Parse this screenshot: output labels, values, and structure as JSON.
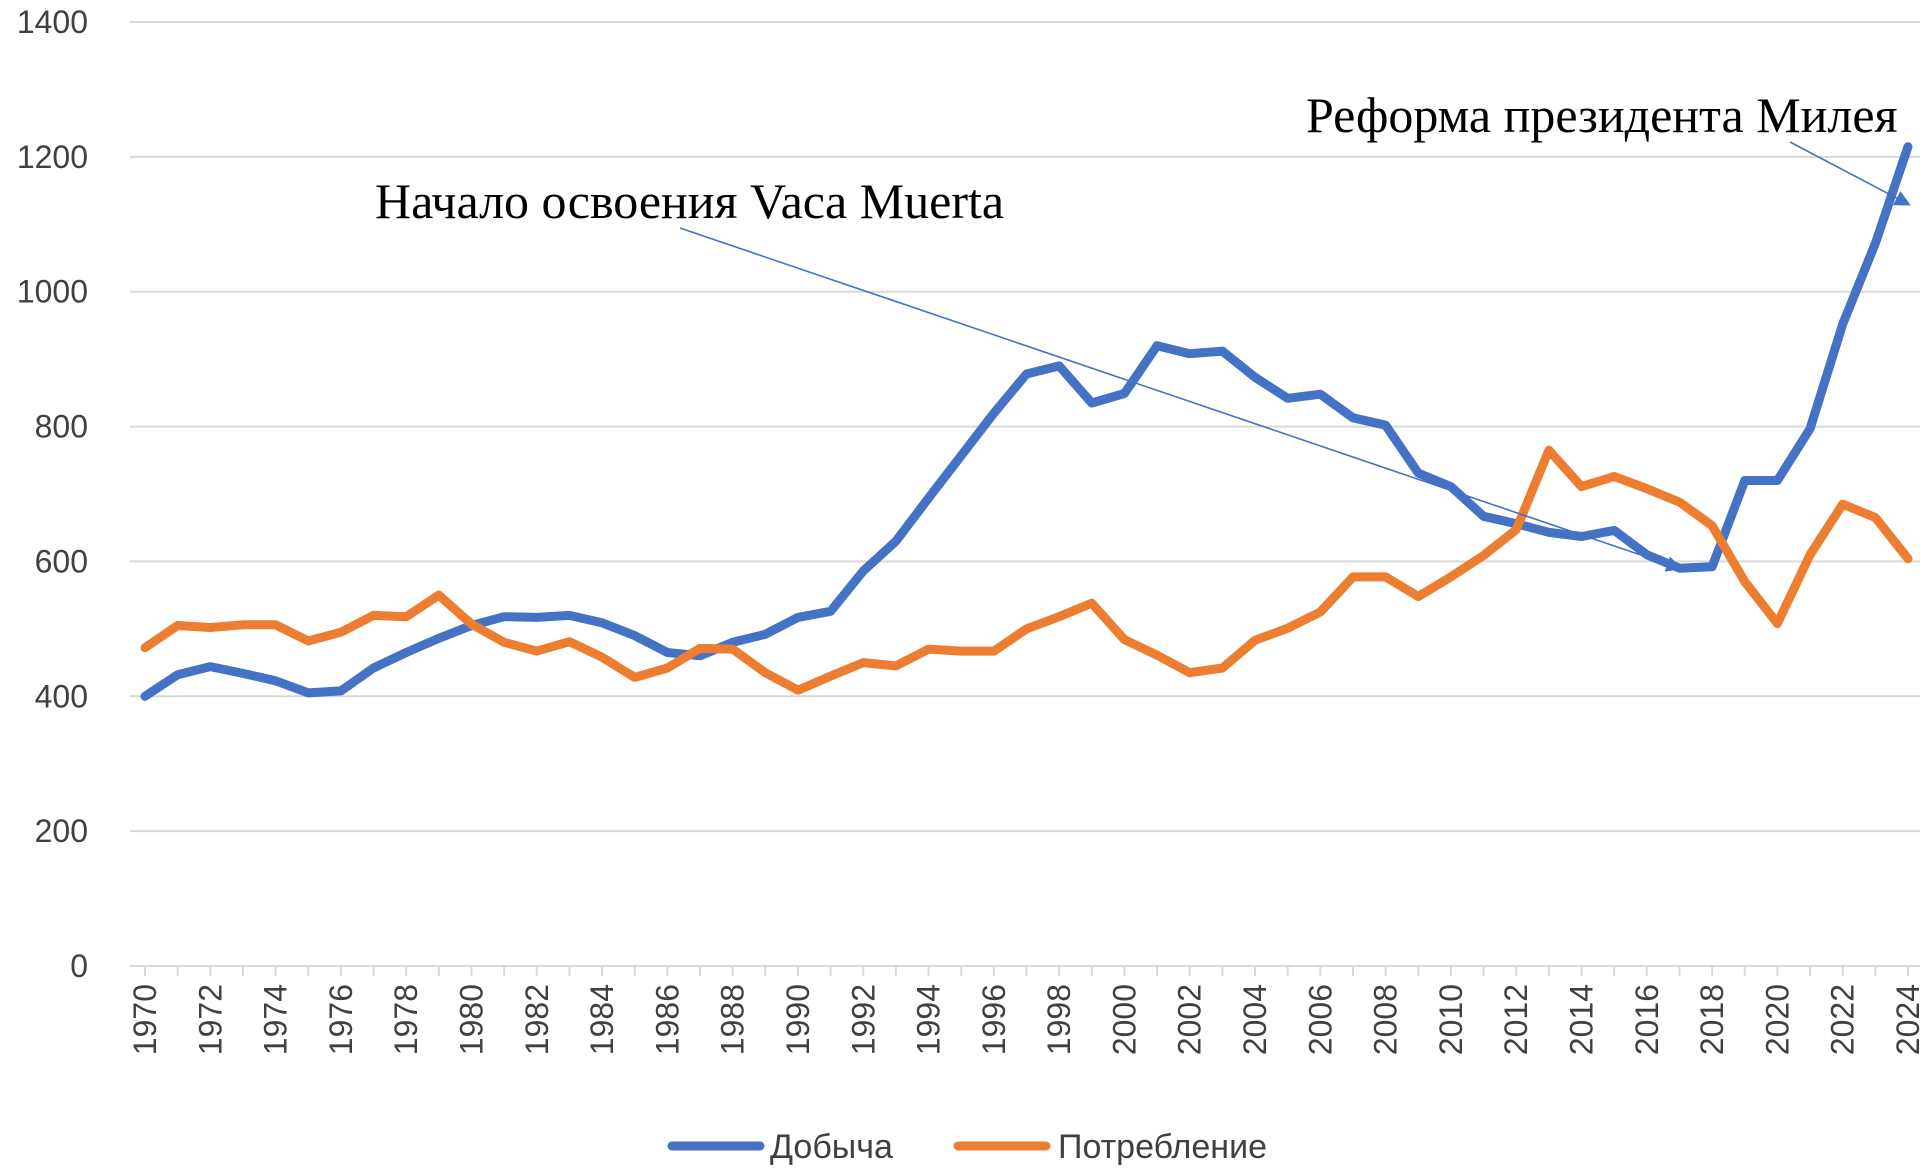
{
  "chart_data": {
    "type": "line",
    "title": "",
    "xlabel": "",
    "ylabel": "",
    "ylim": [
      0,
      1400
    ],
    "yticks": [
      0,
      200,
      400,
      600,
      800,
      1000,
      1200,
      1400
    ],
    "xlim": [
      1970,
      2024
    ],
    "xtick_labels": [
      "1970",
      "1972",
      "1974",
      "1976",
      "1978",
      "1980",
      "1982",
      "1984",
      "1986",
      "1988",
      "1990",
      "1992",
      "1994",
      "1996",
      "1998",
      "2000",
      "2002",
      "2004",
      "2006",
      "2008",
      "2010",
      "2012",
      "2014",
      "2016",
      "2018",
      "2020",
      "2022",
      "2024"
    ],
    "grid": true,
    "legend_position": "bottom",
    "x": [
      1970,
      1971,
      1972,
      1973,
      1974,
      1975,
      1976,
      1977,
      1978,
      1979,
      1980,
      1981,
      1982,
      1983,
      1984,
      1985,
      1986,
      1987,
      1988,
      1989,
      1990,
      1991,
      1992,
      1993,
      1994,
      1995,
      1996,
      1997,
      1998,
      1999,
      2000,
      2001,
      2002,
      2003,
      2004,
      2005,
      2006,
      2007,
      2008,
      2009,
      2010,
      2011,
      2012,
      2013,
      2014,
      2015,
      2016,
      2017,
      2018,
      2019,
      2020,
      2021,
      2022,
      2023,
      2024
    ],
    "series": [
      {
        "name": "Добыча",
        "color": "#4472c4",
        "values": [
          400,
          432,
          444,
          434,
          423,
          405,
          408,
          442,
          465,
          486,
          505,
          518,
          517,
          520,
          509,
          490,
          465,
          460,
          480,
          492,
          517,
          526,
          586,
          630,
          694,
          757,
          820,
          878,
          890,
          835,
          849,
          920,
          908,
          912,
          873,
          842,
          848,
          813,
          802,
          731,
          711,
          667,
          656,
          643,
          637,
          646,
          610,
          590,
          592,
          720,
          720,
          797,
          952,
          1072,
          1215
        ]
      },
      {
        "name": "Потребление",
        "color": "#ed7d31",
        "values": [
          472,
          505,
          502,
          506,
          506,
          482,
          495,
          520,
          518,
          550,
          507,
          480,
          467,
          481,
          458,
          428,
          442,
          471,
          470,
          435,
          409,
          430,
          450,
          445,
          470,
          467,
          467,
          500,
          518,
          538,
          484,
          461,
          435,
          442,
          483,
          501,
          525,
          577,
          577,
          548,
          577,
          609,
          647,
          765,
          711,
          726,
          708,
          688,
          653,
          570,
          508,
          610,
          685,
          665,
          604
        ]
      }
    ],
    "annotations": [
      {
        "text": "Начало освоения Vaca Muerta",
        "arrow_to": {
          "x": 2017,
          "y": 590
        }
      },
      {
        "text": "Реформа президента Милея",
        "arrow_to": {
          "x": 2024,
          "y": 1130
        }
      }
    ]
  }
}
